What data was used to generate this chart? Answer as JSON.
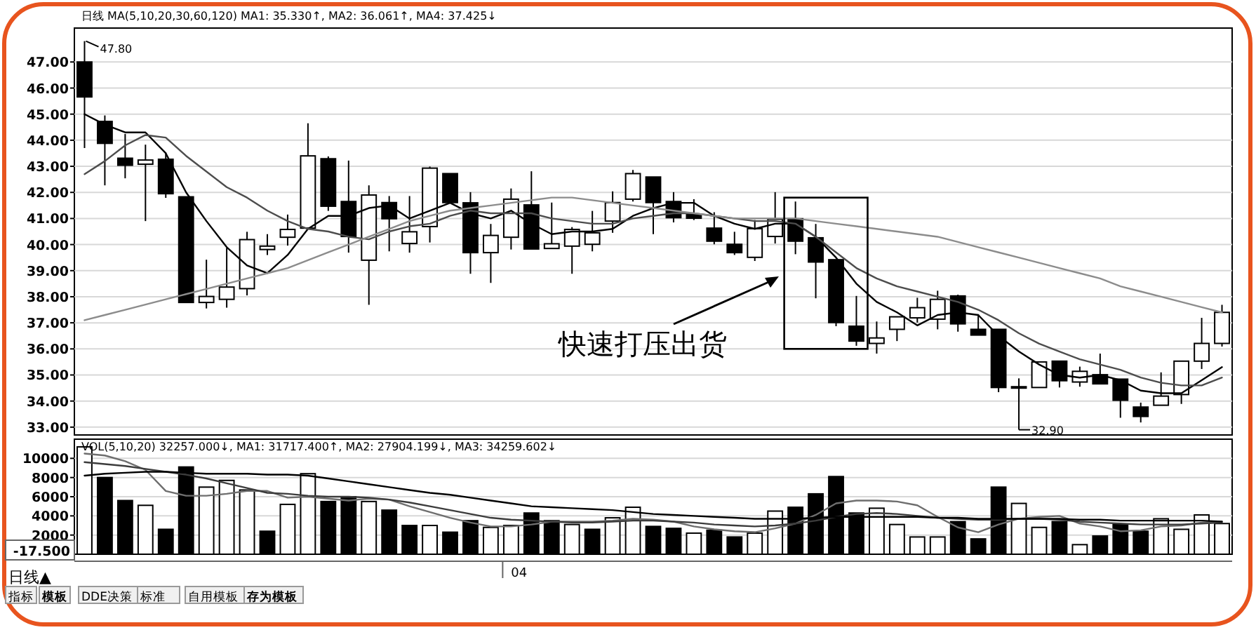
{
  "chart_data": [
    {
      "type": "candlestick",
      "categories": [
        null,
        null,
        null,
        null,
        null,
        null,
        null,
        null,
        null,
        null,
        null,
        null,
        null,
        null,
        null,
        null,
        null,
        null,
        null,
        null,
        null,
        null,
        null,
        null,
        null,
        null,
        null,
        null,
        null,
        null,
        null,
        null,
        null,
        null,
        null,
        null,
        null,
        null,
        null,
        null,
        null,
        null,
        null,
        null,
        null,
        null,
        null,
        null,
        null,
        null,
        null,
        null,
        null,
        null,
        null,
        null,
        null
      ],
      "ohlc": [
        [
          47.0,
          47.8,
          43.7,
          45.66
        ],
        [
          44.72,
          44.95,
          42.27,
          43.88
        ],
        [
          43.31,
          44.24,
          42.54,
          43.04
        ],
        [
          43.08,
          43.83,
          40.9,
          43.24
        ],
        [
          43.27,
          43.52,
          41.79,
          41.95
        ],
        [
          41.83,
          41.83,
          37.78,
          37.78
        ],
        [
          37.78,
          39.42,
          37.55,
          38.01
        ],
        [
          37.9,
          39.87,
          37.58,
          38.37
        ],
        [
          38.31,
          40.49,
          38.05,
          40.19
        ],
        [
          39.81,
          40.4,
          39.6,
          39.94
        ],
        [
          40.28,
          41.15,
          39.96,
          40.58
        ],
        [
          40.63,
          44.65,
          40.58,
          43.4
        ],
        [
          43.29,
          43.38,
          41.29,
          41.47
        ],
        [
          41.65,
          43.22,
          39.69,
          40.31
        ],
        [
          39.4,
          42.27,
          37.69,
          41.9
        ],
        [
          41.61,
          41.86,
          39.74,
          40.99
        ],
        [
          40.04,
          41.86,
          39.69,
          40.49
        ],
        [
          40.69,
          42.99,
          40.08,
          42.93
        ],
        [
          42.72,
          42.72,
          41.61,
          41.61
        ],
        [
          41.6,
          42.01,
          38.88,
          39.69
        ],
        [
          39.69,
          40.79,
          38.53,
          40.35
        ],
        [
          40.28,
          42.15,
          39.81,
          41.74
        ],
        [
          41.52,
          42.81,
          39.83,
          39.83
        ],
        [
          39.85,
          41.61,
          39.85,
          40.03
        ],
        [
          39.94,
          40.67,
          38.88,
          40.58
        ],
        [
          40.01,
          41.29,
          39.74,
          40.45
        ],
        [
          40.9,
          42.04,
          40.45,
          41.61
        ],
        [
          41.74,
          42.86,
          41.65,
          42.72
        ],
        [
          42.59,
          42.59,
          40.4,
          41.61
        ],
        [
          41.65,
          42.01,
          40.85,
          41.03
        ],
        [
          41.15,
          41.74,
          40.94,
          41.01
        ],
        [
          40.63,
          41.24,
          40.01,
          40.13
        ],
        [
          40.01,
          40.49,
          39.6,
          39.69
        ],
        [
          39.51,
          40.94,
          39.37,
          40.61
        ],
        [
          40.31,
          42.01,
          40.04,
          40.97
        ],
        [
          40.99,
          41.65,
          39.63,
          40.13
        ],
        [
          40.26,
          40.79,
          37.94,
          39.33
        ],
        [
          39.42,
          39.42,
          36.87,
          37.01
        ],
        [
          36.87,
          38.03,
          36.12,
          36.3
        ],
        [
          36.21,
          37.05,
          35.82,
          36.42
        ],
        [
          36.75,
          37.23,
          36.3,
          37.23
        ],
        [
          37.19,
          37.96,
          37.01,
          37.58
        ],
        [
          37.14,
          38.23,
          36.75,
          37.9
        ],
        [
          38.03,
          38.08,
          36.66,
          36.96
        ],
        [
          36.75,
          37.33,
          36.53,
          36.53
        ],
        [
          36.75,
          36.75,
          34.34,
          34.52
        ],
        [
          34.55,
          34.87,
          32.9,
          34.55
        ],
        [
          34.52,
          35.5,
          34.52,
          35.5
        ],
        [
          35.53,
          35.53,
          34.52,
          34.78
        ],
        [
          34.73,
          35.32,
          34.55,
          35.14
        ],
        [
          35.01,
          35.82,
          34.66,
          34.66
        ],
        [
          34.84,
          34.84,
          33.36,
          34.03
        ],
        [
          33.77,
          33.94,
          33.18,
          33.41
        ],
        [
          33.84,
          35.1,
          33.84,
          34.19
        ],
        [
          34.25,
          35.53,
          33.89,
          35.53
        ],
        [
          35.53,
          37.19,
          35.23,
          36.21
        ],
        [
          36.21,
          37.69,
          36.09,
          37.4
        ]
      ],
      "series": [
        {
          "type": "line",
          "color": "#000000",
          "values": [
            45.0,
            44.6,
            44.3,
            44.3,
            43.5,
            42.0,
            40.9,
            39.9,
            39.2,
            38.9,
            39.6,
            40.6,
            41.1,
            41.1,
            41.4,
            41.5,
            41.0,
            41.3,
            41.6,
            41.2,
            41.0,
            41.3,
            40.8,
            40.4,
            40.5,
            40.5,
            40.6,
            41.1,
            41.4,
            41.6,
            41.6,
            41.1,
            40.8,
            40.6,
            40.8,
            40.8,
            40.3,
            39.5,
            38.5,
            37.8,
            37.4,
            36.9,
            37.3,
            37.4,
            37.3,
            36.5,
            35.9,
            35.4,
            35.0,
            34.9,
            35.0,
            34.8,
            34.4,
            34.3,
            34.3,
            34.8,
            35.3
          ]
        },
        {
          "type": "line",
          "color": "#4d4d4d",
          "values": [
            42.7,
            43.2,
            43.8,
            44.2,
            44.1,
            43.4,
            42.8,
            42.2,
            41.8,
            41.3,
            40.9,
            40.6,
            40.5,
            40.3,
            40.2,
            40.5,
            40.7,
            40.8,
            41.1,
            41.3,
            41.2,
            41.2,
            41.2,
            41.0,
            40.9,
            40.8,
            40.8,
            41.0,
            41.1,
            41.2,
            41.2,
            41.1,
            41.0,
            40.9,
            40.9,
            40.8,
            40.3,
            39.7,
            39.1,
            38.7,
            38.4,
            38.2,
            38.0,
            37.8,
            37.5,
            37.1,
            36.6,
            36.2,
            35.9,
            35.6,
            35.4,
            35.2,
            34.9,
            34.7,
            34.6,
            34.6,
            34.9
          ]
        },
        {
          "type": "line",
          "color": "#8c8c8c",
          "values": [
            37.1,
            37.3,
            37.5,
            37.7,
            37.9,
            38.1,
            38.3,
            38.5,
            38.7,
            38.9,
            39.1,
            39.4,
            39.7,
            40.0,
            40.3,
            40.6,
            40.9,
            41.1,
            41.3,
            41.4,
            41.5,
            41.6,
            41.7,
            41.8,
            41.8,
            41.7,
            41.6,
            41.5,
            41.4,
            41.3,
            41.2,
            41.1,
            41.0,
            41.0,
            41.0,
            41.0,
            40.9,
            40.8,
            40.7,
            40.6,
            40.5,
            40.4,
            40.3,
            40.1,
            39.9,
            39.7,
            39.5,
            39.3,
            39.1,
            38.9,
            38.7,
            38.4,
            38.2,
            38.0,
            37.8,
            37.6,
            37.4
          ]
        }
      ],
      "ylim": [
        32.7,
        48.3
      ],
      "yticks": [
        {
          "value": 33,
          "label": "33.00"
        },
        {
          "value": 34,
          "label": "34.00"
        },
        {
          "value": 35,
          "label": "35.00"
        },
        {
          "value": 36,
          "label": "36.00"
        },
        {
          "value": 37,
          "label": "37.00"
        },
        {
          "value": 38,
          "label": "38.00"
        },
        {
          "value": 39,
          "label": "39.00"
        },
        {
          "value": 40,
          "label": "40.00"
        },
        {
          "value": 41,
          "label": "41.00"
        },
        {
          "value": 42,
          "label": "42.00"
        },
        {
          "value": 43,
          "label": "43.00"
        },
        {
          "value": 44,
          "label": "44.00"
        },
        {
          "value": 45,
          "label": "45.00"
        },
        {
          "value": 46,
          "label": "46.00"
        },
        {
          "value": 47,
          "label": "47.00"
        }
      ],
      "grid": "y",
      "tick_labels": "y",
      "annotations": [
        "日线 MA(5,10,20,30,60,120) MA1: 35.330↑, MA2: 36.061↑, MA4: 37.425↓",
        "47.80",
        "32.90",
        "快速打压出货"
      ]
    },
    {
      "type": "bar",
      "categories": [
        null,
        null,
        null,
        null,
        null,
        null,
        null,
        null,
        null,
        null,
        null,
        null,
        null,
        null,
        null,
        null,
        null,
        null,
        null,
        null,
        null,
        "04",
        null,
        null,
        null,
        null,
        null,
        null,
        null,
        null,
        null,
        null,
        null,
        null,
        null,
        null,
        null,
        null,
        null,
        null,
        null,
        null,
        null,
        null,
        null,
        null,
        null,
        null,
        null,
        null,
        null,
        null,
        null,
        null,
        null,
        null,
        null
      ],
      "values": [
        11200,
        8000,
        5600,
        5100,
        2600,
        9100,
        7000,
        7700,
        6700,
        2400,
        5200,
        8400,
        5500,
        6000,
        5500,
        4600,
        3000,
        3000,
        2300,
        3500,
        2800,
        3000,
        4300,
        3500,
        3100,
        2600,
        3800,
        4900,
        2900,
        2700,
        2200,
        2500,
        1800,
        2200,
        4500,
        4900,
        6300,
        8100,
        4300,
        4800,
        3100,
        1800,
        1800,
        3400,
        1600,
        7000,
        5300,
        2800,
        3400,
        1000,
        1900,
        3100,
        2400,
        3700,
        2600,
        4100,
        3200
      ],
      "colors": [
        "#ffffff",
        "#000000",
        "#000000",
        "#ffffff",
        "#000000",
        "#000000",
        "#ffffff",
        "#ffffff",
        "#ffffff",
        "#000000",
        "#ffffff",
        "#ffffff",
        "#000000",
        "#000000",
        "#ffffff",
        "#000000",
        "#000000",
        "#ffffff",
        "#000000",
        "#000000",
        "#ffffff",
        "#ffffff",
        "#000000",
        "#000000",
        "#ffffff",
        "#000000",
        "#ffffff",
        "#ffffff",
        "#000000",
        "#000000",
        "#ffffff",
        "#000000",
        "#000000",
        "#ffffff",
        "#ffffff",
        "#000000",
        "#000000",
        "#000000",
        "#000000",
        "#ffffff",
        "#ffffff",
        "#ffffff",
        "#ffffff",
        "#000000",
        "#000000",
        "#000000",
        "#ffffff",
        "#ffffff",
        "#000000",
        "#ffffff",
        "#000000",
        "#000000",
        "#000000",
        "#ffffff",
        "#ffffff",
        "#ffffff",
        "#ffffff"
      ],
      "series": [
        {
          "type": "line",
          "color": "#6e6e6e",
          "values": [
            10500,
            10300,
            9700,
            8800,
            6600,
            6100,
            6100,
            6300,
            6600,
            6600,
            5900,
            6000,
            5800,
            5600,
            5800,
            5700,
            5000,
            4400,
            3800,
            3300,
            2900,
            2900,
            3100,
            3400,
            3400,
            3400,
            3500,
            3700,
            3600,
            3400,
            2900,
            2600,
            2400,
            2300,
            2700,
            3200,
            4100,
            5300,
            5600,
            5600,
            5500,
            5100,
            3900,
            2800,
            2300,
            3100,
            3700,
            3900,
            4000,
            3200,
            2900,
            2400,
            2500,
            2900,
            3000,
            3300,
            3400
          ]
        },
        {
          "type": "line",
          "color": "#3c3c3c",
          "values": [
            9600,
            9400,
            9200,
            8900,
            8600,
            8300,
            7900,
            7400,
            6900,
            6400,
            6300,
            6100,
            6000,
            6000,
            5900,
            5700,
            5400,
            5000,
            4600,
            4200,
            3800,
            3600,
            3500,
            3400,
            3300,
            3300,
            3400,
            3500,
            3500,
            3400,
            3300,
            3100,
            3000,
            2900,
            3000,
            3200,
            3500,
            3900,
            4200,
            4300,
            4200,
            4000,
            3800,
            3700,
            3600,
            3600,
            3700,
            3700,
            3600,
            3400,
            3300,
            3200,
            3100,
            3100,
            3100,
            3200,
            3300
          ]
        },
        {
          "type": "line",
          "color": "#000000",
          "values": [
            8200,
            8400,
            8500,
            8600,
            8600,
            8500,
            8400,
            8400,
            8400,
            8300,
            8300,
            8200,
            7900,
            7600,
            7300,
            7000,
            6700,
            6400,
            6200,
            5900,
            5600,
            5300,
            5000,
            4900,
            4800,
            4700,
            4600,
            4400,
            4200,
            4100,
            4000,
            3900,
            3800,
            3700,
            3700,
            3700,
            3800,
            3900,
            3900,
            3900,
            3900,
            3900,
            3800,
            3800,
            3700,
            3700,
            3700,
            3700,
            3700,
            3600,
            3600,
            3500,
            3500,
            3500,
            3500,
            3500,
            3400
          ]
        }
      ],
      "ylim": [
        0,
        12000
      ],
      "yticks": [
        2000,
        4000,
        6000,
        8000,
        10000
      ],
      "grid": "y",
      "annotations": [
        "VOL(5,10,20) 32257.000↓, MA1: 31717.400↑, MA2: 27904.199↓, MA3: 34259.602↓",
        "-17.500",
        "日线▲",
        "指标",
        "模板",
        "DDE决策",
        "标准",
        "自用模板",
        "存为模板"
      ]
    }
  ]
}
